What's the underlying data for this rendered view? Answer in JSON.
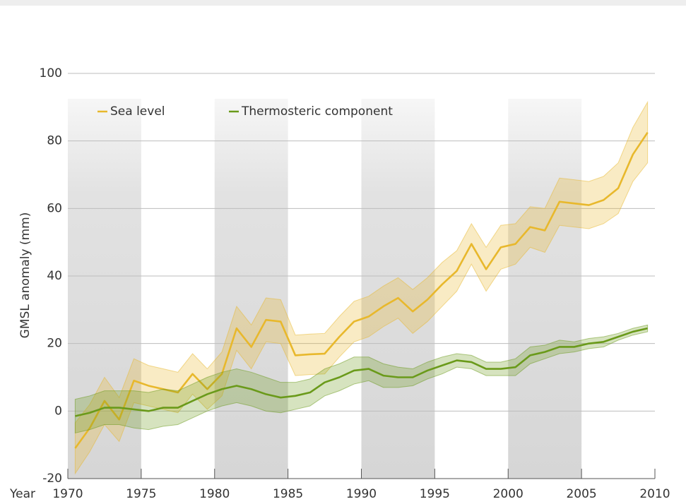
{
  "chart_data": {
    "type": "line",
    "x_label": "Year",
    "y_label": "GMSL anomaly (mm)",
    "x": [
      1970.5,
      1971.5,
      1972.5,
      1973.5,
      1974.5,
      1975.5,
      1976.5,
      1977.5,
      1978.5,
      1979.5,
      1980.5,
      1981.5,
      1982.5,
      1983.5,
      1984.5,
      1985.5,
      1986.5,
      1987.5,
      1988.5,
      1989.5,
      1990.5,
      1991.5,
      1992.5,
      1993.5,
      1994.5,
      1995.5,
      1996.5,
      1997.5,
      1998.5,
      1999.5,
      2000.5,
      2001.5,
      2002.5,
      2003.5,
      2004.5,
      2005.5,
      2006.5,
      2007.5,
      2008.5,
      2009.5
    ],
    "series": [
      {
        "name": "Sea level",
        "color": "#e8b82c",
        "values": [
          -11,
          -5,
          3,
          -2.5,
          9,
          7.5,
          6.5,
          5.5,
          11,
          6.5,
          11,
          24.5,
          19,
          27,
          26.5,
          16.5,
          16.8,
          17,
          22,
          26.5,
          28,
          31,
          33.5,
          29.5,
          33,
          37.5,
          41.5,
          49.5,
          42,
          48.5,
          49.5,
          54.5,
          53.5,
          62,
          61.5,
          61,
          62.5,
          66,
          76,
          82.5
        ],
        "errors": [
          7.5,
          7,
          7,
          6.5,
          6.5,
          6,
          6,
          6,
          6,
          6,
          6.5,
          6.5,
          6.5,
          6.5,
          6.5,
          6,
          6,
          6,
          6,
          6,
          6,
          6,
          6,
          6.5,
          6.5,
          6.5,
          6,
          6,
          6.5,
          6.5,
          6,
          6,
          6.5,
          7,
          7,
          7,
          7,
          7.5,
          8,
          9
        ]
      },
      {
        "name": "Thermosteric component",
        "color": "#6a9a1a",
        "values": [
          -1.5,
          -0.5,
          1,
          1,
          0.5,
          0,
          1,
          1,
          3,
          5,
          6.5,
          7.5,
          6.5,
          5,
          4,
          4.5,
          5.5,
          8.5,
          10,
          12,
          12.5,
          10.5,
          10,
          10,
          12,
          13.5,
          15,
          14.5,
          12.5,
          12.5,
          13,
          16.5,
          17.5,
          19,
          19,
          20,
          20.5,
          22,
          23.5,
          24.5
        ],
        "errors": [
          5,
          5,
          5,
          5,
          5.5,
          5.5,
          5.5,
          5,
          5,
          5,
          5,
          5,
          5,
          5,
          4.5,
          4,
          4,
          4,
          4,
          4,
          3.5,
          3.5,
          3,
          2.5,
          2.5,
          2.5,
          2,
          2,
          2,
          2,
          2.5,
          2.5,
          2,
          2,
          1.5,
          1.5,
          1.5,
          1,
          1,
          1
        ]
      }
    ],
    "xlim": [
      1970,
      2010
    ],
    "xticks": [
      1970,
      1975,
      1980,
      1985,
      1990,
      1995,
      2000,
      2005,
      2010
    ],
    "ylim": [
      -20,
      100
    ],
    "yticks": [
      -20,
      0,
      20,
      40,
      60,
      80,
      100
    ],
    "grid": true,
    "legend": "top-left"
  }
}
